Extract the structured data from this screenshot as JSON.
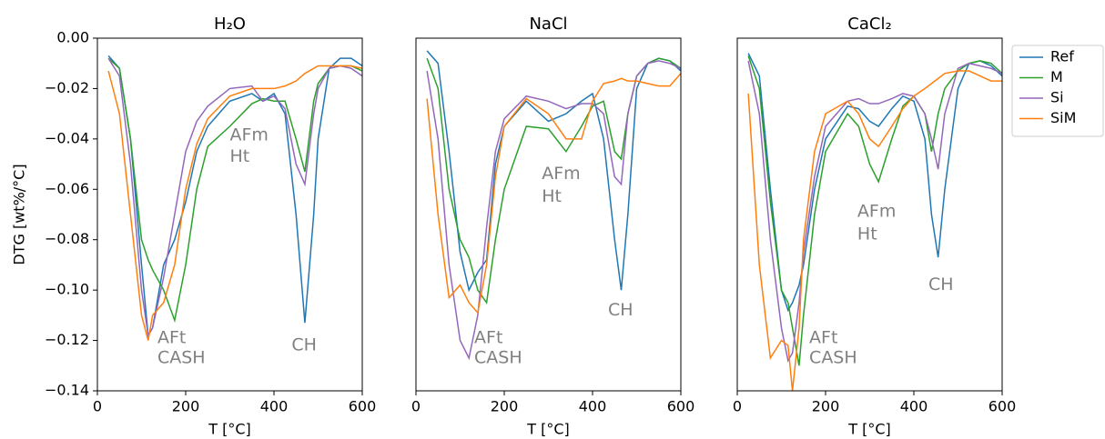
{
  "chart_data": [
    {
      "type": "line",
      "title": "H₂O",
      "x_label": "T [°C]",
      "y_label": "DTG [wt%/°C]",
      "x": [
        25,
        50,
        75,
        100,
        115,
        125,
        150,
        175,
        200,
        225,
        250,
        300,
        350,
        375,
        400,
        425,
        450,
        470,
        490,
        500,
        525,
        550,
        575,
        600
      ],
      "series": [
        {
          "name": "Ref",
          "color": "#1f77b4",
          "values": [
            -0.007,
            -0.012,
            -0.04,
            -0.09,
            -0.118,
            -0.115,
            -0.09,
            -0.08,
            -0.065,
            -0.045,
            -0.035,
            -0.025,
            -0.022,
            -0.025,
            -0.022,
            -0.03,
            -0.07,
            -0.113,
            -0.07,
            -0.04,
            -0.012,
            -0.008,
            -0.008,
            -0.011
          ]
        },
        {
          "name": "M",
          "color": "#2ca02c",
          "values": [
            -0.008,
            -0.012,
            -0.04,
            -0.08,
            -0.088,
            -0.092,
            -0.1,
            -0.112,
            -0.09,
            -0.06,
            -0.043,
            -0.035,
            -0.026,
            -0.024,
            -0.025,
            -0.025,
            -0.04,
            -0.053,
            -0.025,
            -0.018,
            -0.012,
            -0.011,
            -0.011,
            -0.013
          ]
        },
        {
          "name": "Si",
          "color": "#9467bd",
          "values": [
            -0.008,
            -0.015,
            -0.05,
            -0.1,
            -0.118,
            -0.115,
            -0.095,
            -0.07,
            -0.045,
            -0.033,
            -0.027,
            -0.02,
            -0.019,
            -0.025,
            -0.023,
            -0.028,
            -0.05,
            -0.058,
            -0.03,
            -0.02,
            -0.012,
            -0.011,
            -0.012,
            -0.015
          ]
        },
        {
          "name": "SiM",
          "color": "#ff7f0e",
          "values": [
            -0.013,
            -0.03,
            -0.07,
            -0.11,
            -0.12,
            -0.11,
            -0.105,
            -0.09,
            -0.06,
            -0.042,
            -0.032,
            -0.023,
            -0.02,
            -0.02,
            -0.02,
            -0.019,
            -0.017,
            -0.014,
            -0.012,
            -0.011,
            -0.011,
            -0.011,
            -0.011,
            -0.012
          ]
        }
      ],
      "annotations": [
        "AFt",
        "CASH",
        "AFm",
        "Ht",
        "CH"
      ],
      "xlim": [
        0,
        600
      ],
      "xticks": [
        0,
        200,
        400,
        600
      ],
      "ylim": [
        -0.14,
        0
      ],
      "yticks": [
        {
          "value": -0.14,
          "label": "−0.14"
        },
        {
          "value": -0.12,
          "label": "−0.12"
        },
        {
          "value": -0.1,
          "label": "−0.10"
        },
        {
          "value": -0.08,
          "label": "−0.08"
        },
        {
          "value": -0.06,
          "label": "−0.06"
        },
        {
          "value": -0.04,
          "label": "−0.04"
        },
        {
          "value": -0.02,
          "label": "−0.02"
        },
        {
          "value": 0,
          "label": "0.00"
        }
      ]
    },
    {
      "type": "line",
      "title": "NaCl",
      "x_label": "T [°C]",
      "x": [
        25,
        50,
        75,
        100,
        120,
        140,
        160,
        180,
        200,
        250,
        300,
        340,
        375,
        400,
        425,
        450,
        465,
        480,
        500,
        525,
        550,
        575,
        600
      ],
      "series": [
        {
          "name": "Ref",
          "color": "#1f77b4",
          "values": [
            -0.005,
            -0.01,
            -0.045,
            -0.085,
            -0.1,
            -0.093,
            -0.088,
            -0.05,
            -0.035,
            -0.025,
            -0.033,
            -0.03,
            -0.025,
            -0.022,
            -0.04,
            -0.08,
            -0.1,
            -0.07,
            -0.02,
            -0.01,
            -0.008,
            -0.009,
            -0.013
          ]
        },
        {
          "name": "M",
          "color": "#2ca02c",
          "values": [
            -0.008,
            -0.02,
            -0.06,
            -0.08,
            -0.087,
            -0.1,
            -0.105,
            -0.08,
            -0.06,
            -0.035,
            -0.036,
            -0.045,
            -0.035,
            -0.027,
            -0.025,
            -0.045,
            -0.048,
            -0.03,
            -0.015,
            -0.01,
            -0.008,
            -0.009,
            -0.012
          ]
        },
        {
          "name": "Si",
          "color": "#9467bd",
          "values": [
            -0.013,
            -0.04,
            -0.09,
            -0.12,
            -0.127,
            -0.11,
            -0.075,
            -0.045,
            -0.032,
            -0.023,
            -0.025,
            -0.028,
            -0.026,
            -0.026,
            -0.03,
            -0.055,
            -0.058,
            -0.03,
            -0.015,
            -0.01,
            -0.009,
            -0.01,
            -0.012
          ]
        },
        {
          "name": "SiM",
          "color": "#ff7f0e",
          "values": [
            -0.024,
            -0.07,
            -0.103,
            -0.098,
            -0.105,
            -0.109,
            -0.09,
            -0.055,
            -0.035,
            -0.024,
            -0.03,
            -0.04,
            -0.04,
            -0.025,
            -0.018,
            -0.017,
            -0.016,
            -0.017,
            -0.017,
            -0.018,
            -0.019,
            -0.019,
            -0.014
          ]
        }
      ],
      "annotations": [
        "AFt",
        "CASH",
        "AFm",
        "Ht",
        "CH"
      ],
      "xlim": [
        0,
        600
      ],
      "xticks": [
        0,
        200,
        400,
        600
      ],
      "ylim": [
        -0.14,
        0
      ]
    },
    {
      "type": "line",
      "title": "CaCl₂",
      "x_label": "T [°C]",
      "x": [
        25,
        50,
        75,
        100,
        115,
        125,
        140,
        150,
        175,
        200,
        250,
        275,
        300,
        320,
        350,
        375,
        400,
        425,
        440,
        455,
        470,
        500,
        525,
        550,
        575,
        600
      ],
      "series": [
        {
          "name": "Ref",
          "color": "#1f77b4",
          "values": [
            -0.006,
            -0.015,
            -0.06,
            -0.1,
            -0.108,
            -0.105,
            -0.098,
            -0.09,
            -0.06,
            -0.04,
            -0.027,
            -0.028,
            -0.033,
            -0.035,
            -0.028,
            -0.023,
            -0.025,
            -0.04,
            -0.07,
            -0.087,
            -0.06,
            -0.02,
            -0.01,
            -0.009,
            -0.011,
            -0.015
          ]
        },
        {
          "name": "M",
          "color": "#2ca02c",
          "values": [
            -0.007,
            -0.02,
            -0.065,
            -0.1,
            -0.105,
            -0.115,
            -0.13,
            -0.11,
            -0.07,
            -0.045,
            -0.03,
            -0.035,
            -0.05,
            -0.057,
            -0.04,
            -0.027,
            -0.023,
            -0.03,
            -0.045,
            -0.03,
            -0.02,
            -0.013,
            -0.01,
            -0.009,
            -0.01,
            -0.014
          ]
        },
        {
          "name": "Si",
          "color": "#9467bd",
          "values": [
            -0.009,
            -0.03,
            -0.08,
            -0.115,
            -0.128,
            -0.125,
            -0.105,
            -0.085,
            -0.055,
            -0.035,
            -0.025,
            -0.024,
            -0.026,
            -0.026,
            -0.024,
            -0.022,
            -0.023,
            -0.03,
            -0.04,
            -0.052,
            -0.03,
            -0.012,
            -0.01,
            -0.011,
            -0.012,
            -0.014
          ]
        },
        {
          "name": "SiM",
          "color": "#ff7f0e",
          "values": [
            -0.022,
            -0.09,
            -0.127,
            -0.12,
            -0.122,
            -0.14,
            -0.115,
            -0.08,
            -0.045,
            -0.03,
            -0.025,
            -0.03,
            -0.04,
            -0.043,
            -0.035,
            -0.028,
            -0.023,
            -0.02,
            -0.018,
            -0.016,
            -0.014,
            -0.013,
            -0.013,
            -0.015,
            -0.017,
            -0.017
          ]
        }
      ],
      "annotations": [
        "AFt",
        "CASH",
        "AFm",
        "Ht",
        "CH"
      ],
      "xlim": [
        0,
        600
      ],
      "xticks": [
        0,
        200,
        400,
        600
      ],
      "ylim": [
        -0.14,
        0
      ],
      "legend": "right"
    }
  ]
}
